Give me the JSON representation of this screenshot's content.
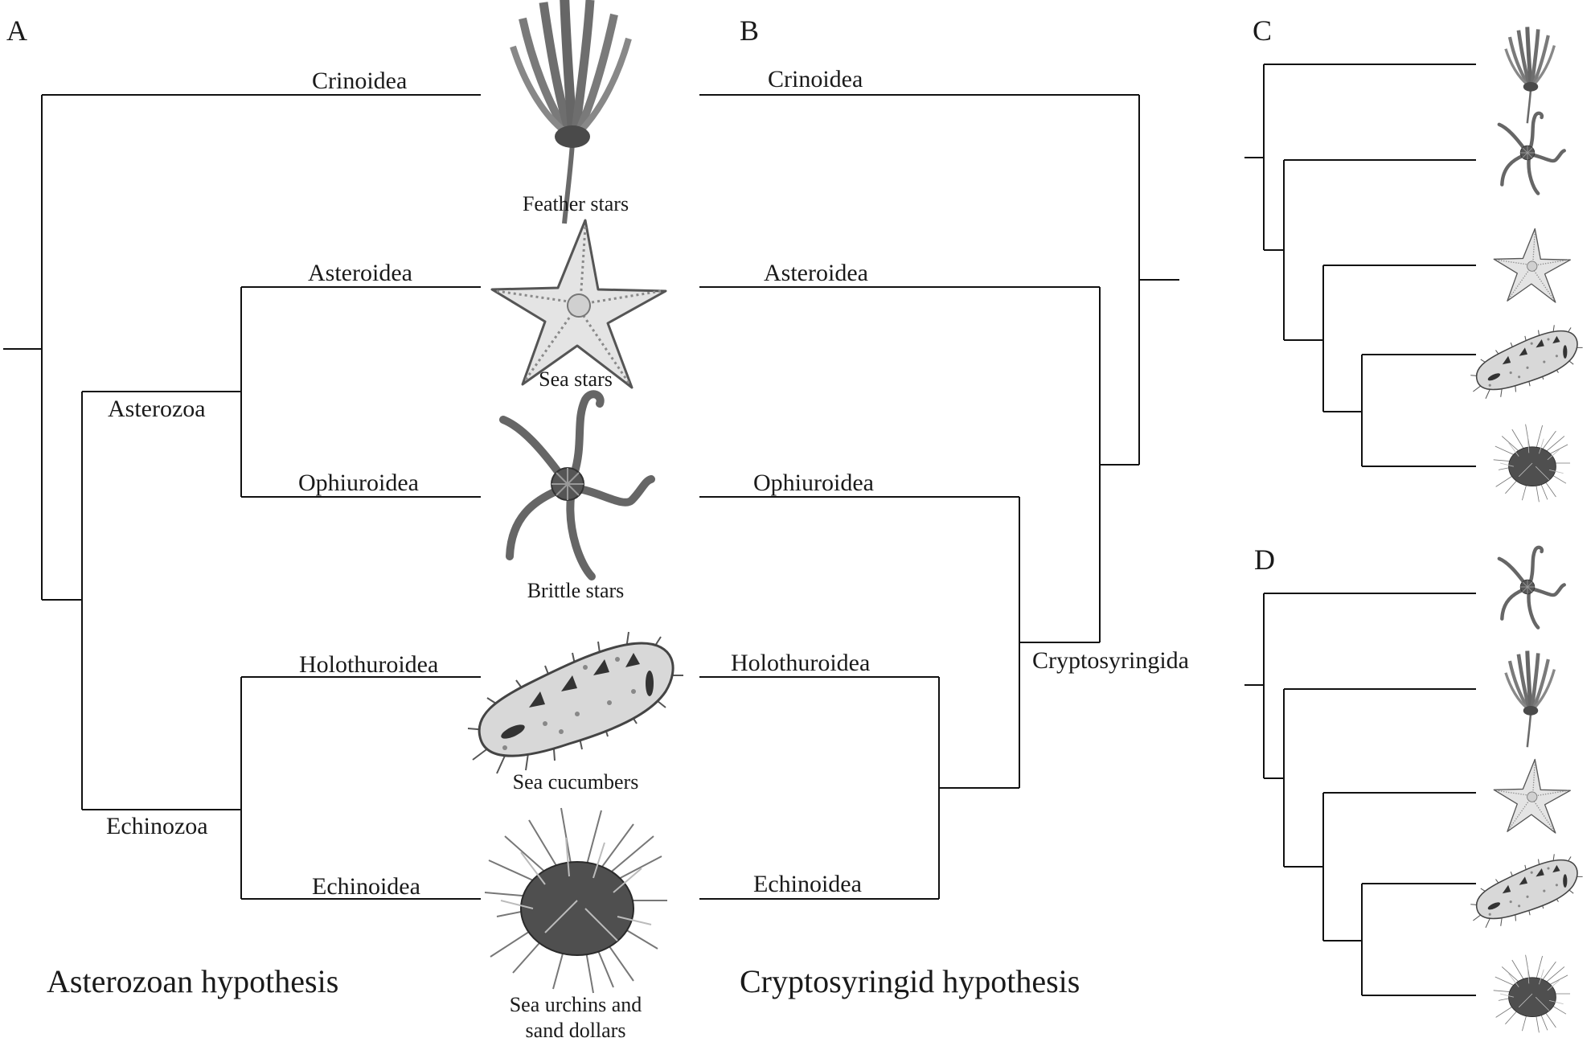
{
  "panels": {
    "a": {
      "letter": "A",
      "hypothesis": "Asterozoan hypothesis",
      "taxa": [
        "Crinoidea",
        "Asteroidea",
        "Ophiuroidea",
        "Holothuroidea",
        "Echinoidea"
      ],
      "clades": [
        "Asterozoa",
        "Echinozoa"
      ]
    },
    "b": {
      "letter": "B",
      "hypothesis": "Cryptosyringid hypothesis",
      "taxa": [
        "Crinoidea",
        "Asteroidea",
        "Ophiuroidea",
        "Holothuroidea",
        "Echinoidea"
      ],
      "clades": [
        "Cryptosyringida"
      ]
    },
    "c": {
      "letter": "C"
    },
    "d": {
      "letter": "D"
    }
  },
  "common_names": {
    "feather_stars": "Feather stars",
    "sea_stars": "Sea stars",
    "brittle_stars": "Brittle stars",
    "sea_cucumbers": "Sea cucumbers",
    "sea_urchins_1": "Sea urchins and",
    "sea_urchins_2": "sand dollars"
  },
  "icons": [
    "feather-star-icon",
    "sea-star-icon",
    "brittle-star-icon",
    "sea-cucumber-icon",
    "sea-urchin-icon"
  ],
  "colors": {
    "line": "#111111",
    "drawing": "#6a6a6a",
    "text": "#1a1a1a"
  }
}
